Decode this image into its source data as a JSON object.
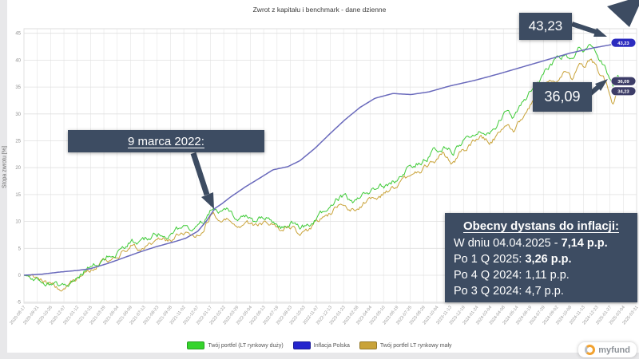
{
  "window": {
    "title": "Zwrot z kapitału i benchmark - dane dzienne"
  },
  "chart_data": {
    "type": "line",
    "title": "Zwrot z kapitału i benchmark - dane dzienne",
    "xlabel": "",
    "ylabel": "Stopa zwrotu [%]",
    "ylim": [
      -5,
      45
    ],
    "y_ticks": [
      -5,
      0,
      5,
      10,
      15,
      20,
      25,
      30,
      35,
      40,
      45
    ],
    "grid": true,
    "legend_position": "bottom",
    "x_tick_labels": [
      "2020-08-17",
      "2020-09-21",
      "2020-10-26",
      "2020-12-07",
      "2021-01-12",
      "2021-02-15",
      "2021-03-29",
      "2021-05-04",
      "2021-06-09",
      "2021-07-13",
      "2021-08-23",
      "2021-09-28",
      "2021-11-02",
      "2021-12-07",
      "2022-01-17",
      "2022-02-22",
      "2022-03-29",
      "2022-05-04",
      "2022-06-13",
      "2022-07-19",
      "2022-08-23",
      "2022-10-03",
      "2022-11-07",
      "2022-12-13",
      "2023-01-23",
      "2023-02-28",
      "2023-04-04",
      "2023-05-10",
      "2023-06-19",
      "2023-07-25",
      "2023-08-29",
      "2023-10-04",
      "2023-11-13",
      "2023-12-19",
      "2024-01-24",
      "2024-03-04",
      "2024-04-08",
      "2024-05-14",
      "2024-06-19",
      "2024-07-29",
      "2024-09-02",
      "2024-10-08",
      "2024-11-13",
      "2024-12-23",
      "2025-01-27",
      "2025-03-04",
      "2025-03-31"
    ],
    "series": [
      {
        "name": "Twój portfel (LT rynkowy duży)",
        "color": "#3ecb37",
        "swatch": "#35d42c",
        "badge": "#3d3d68",
        "end_label": "36,09",
        "end_value": 36.09,
        "noise": 0.55,
        "seed": 11,
        "points": [
          [
            0,
            0
          ],
          [
            0.015,
            -0.3
          ],
          [
            0.03,
            -0.8
          ],
          [
            0.05,
            -1.8
          ],
          [
            0.065,
            -2.3
          ],
          [
            0.08,
            -1.2
          ],
          [
            0.1,
            0.8
          ],
          [
            0.12,
            2.2
          ],
          [
            0.135,
            3.0
          ],
          [
            0.15,
            4.2
          ],
          [
            0.165,
            5.3
          ],
          [
            0.18,
            6.3
          ],
          [
            0.195,
            5.6
          ],
          [
            0.21,
            6.8
          ],
          [
            0.225,
            7.6
          ],
          [
            0.24,
            7.2
          ],
          [
            0.255,
            8.4
          ],
          [
            0.27,
            8.8
          ],
          [
            0.285,
            8.2
          ],
          [
            0.3,
            9.6
          ],
          [
            0.314,
            12.8
          ],
          [
            0.325,
            11.6
          ],
          [
            0.34,
            11.9
          ],
          [
            0.355,
            10.4
          ],
          [
            0.37,
            11.3
          ],
          [
            0.385,
            9.8
          ],
          [
            0.4,
            10.9
          ],
          [
            0.415,
            10.2
          ],
          [
            0.43,
            9.2
          ],
          [
            0.445,
            10.3
          ],
          [
            0.46,
            8.8
          ],
          [
            0.475,
            9.6
          ],
          [
            0.49,
            10.8
          ],
          [
            0.505,
            12.4
          ],
          [
            0.52,
            13.8
          ],
          [
            0.535,
            14.6
          ],
          [
            0.55,
            13.6
          ],
          [
            0.565,
            14.9
          ],
          [
            0.58,
            15.8
          ],
          [
            0.595,
            16.4
          ],
          [
            0.61,
            17.2
          ],
          [
            0.625,
            18.1
          ],
          [
            0.64,
            19.6
          ],
          [
            0.655,
            20.9
          ],
          [
            0.67,
            21.9
          ],
          [
            0.685,
            23.2
          ],
          [
            0.7,
            24.3
          ],
          [
            0.715,
            23.2
          ],
          [
            0.73,
            25.0
          ],
          [
            0.745,
            26.4
          ],
          [
            0.76,
            27.8
          ],
          [
            0.775,
            27.0
          ],
          [
            0.79,
            28.6
          ],
          [
            0.805,
            30.9
          ],
          [
            0.815,
            28.9
          ],
          [
            0.83,
            31.9
          ],
          [
            0.845,
            34.4
          ],
          [
            0.86,
            36.3
          ],
          [
            0.875,
            38.6
          ],
          [
            0.89,
            39.9
          ],
          [
            0.905,
            41.2
          ],
          [
            0.915,
            39.4
          ],
          [
            0.925,
            42.4
          ],
          [
            0.935,
            41.2
          ],
          [
            0.945,
            42.7
          ],
          [
            0.955,
            41.4
          ],
          [
            0.965,
            39.6
          ],
          [
            0.975,
            37.2
          ],
          [
            0.982,
            34.8
          ],
          [
            0.99,
            36.8
          ],
          [
            1,
            36.09
          ]
        ]
      },
      {
        "name": "Inflacja Polska",
        "color": "#6a6abc",
        "swatch": "#2525cd",
        "badge": "#2b2bbf",
        "end_label": "43,23",
        "end_value": 43.23,
        "noise": 0,
        "seed": 1,
        "points": [
          [
            0,
            0
          ],
          [
            0.03,
            0.2
          ],
          [
            0.06,
            0.6
          ],
          [
            0.09,
            0.9
          ],
          [
            0.11,
            1.2
          ],
          [
            0.14,
            2.2
          ],
          [
            0.17,
            3.4
          ],
          [
            0.19,
            4.2
          ],
          [
            0.22,
            5.3
          ],
          [
            0.25,
            6.2
          ],
          [
            0.27,
            6.9
          ],
          [
            0.29,
            8.2
          ],
          [
            0.305,
            10.2
          ],
          [
            0.318,
            12.4
          ],
          [
            0.33,
            13.3
          ],
          [
            0.345,
            14.6
          ],
          [
            0.37,
            16.5
          ],
          [
            0.395,
            18.2
          ],
          [
            0.415,
            19.6
          ],
          [
            0.44,
            20.2
          ],
          [
            0.46,
            21.3
          ],
          [
            0.485,
            23.6
          ],
          [
            0.51,
            26.3
          ],
          [
            0.535,
            28.9
          ],
          [
            0.56,
            31.2
          ],
          [
            0.585,
            32.9
          ],
          [
            0.615,
            33.8
          ],
          [
            0.645,
            33.6
          ],
          [
            0.675,
            34.1
          ],
          [
            0.71,
            35.2
          ],
          [
            0.75,
            36.2
          ],
          [
            0.79,
            37.4
          ],
          [
            0.83,
            38.7
          ],
          [
            0.87,
            40.0
          ],
          [
            0.91,
            41.3
          ],
          [
            0.95,
            42.3
          ],
          [
            0.98,
            42.9
          ],
          [
            1,
            43.23
          ]
        ]
      },
      {
        "name": "Twój portfel LT rynkowy mały",
        "color": "#c9a339",
        "swatch": "#c9a339",
        "badge": "#3d3d68",
        "end_label": "34,23",
        "end_value": 34.23,
        "noise": 0.5,
        "seed": 29,
        "points": [
          [
            0,
            0
          ],
          [
            0.015,
            -0.4
          ],
          [
            0.03,
            -1.0
          ],
          [
            0.05,
            -2.0
          ],
          [
            0.065,
            -2.6
          ],
          [
            0.08,
            -1.5
          ],
          [
            0.1,
            0.4
          ],
          [
            0.12,
            1.7
          ],
          [
            0.135,
            2.4
          ],
          [
            0.15,
            3.6
          ],
          [
            0.165,
            4.6
          ],
          [
            0.18,
            5.6
          ],
          [
            0.195,
            4.9
          ],
          [
            0.21,
            6.0
          ],
          [
            0.225,
            6.8
          ],
          [
            0.24,
            6.4
          ],
          [
            0.255,
            7.5
          ],
          [
            0.27,
            7.9
          ],
          [
            0.285,
            7.3
          ],
          [
            0.3,
            8.7
          ],
          [
            0.314,
            11.7
          ],
          [
            0.325,
            10.6
          ],
          [
            0.34,
            10.9
          ],
          [
            0.355,
            9.3
          ],
          [
            0.37,
            10.2
          ],
          [
            0.385,
            8.7
          ],
          [
            0.4,
            9.8
          ],
          [
            0.415,
            9.1
          ],
          [
            0.43,
            8.1
          ],
          [
            0.445,
            9.2
          ],
          [
            0.46,
            7.7
          ],
          [
            0.475,
            8.5
          ],
          [
            0.49,
            9.7
          ],
          [
            0.505,
            11.2
          ],
          [
            0.52,
            12.6
          ],
          [
            0.535,
            13.4
          ],
          [
            0.55,
            12.4
          ],
          [
            0.565,
            13.6
          ],
          [
            0.58,
            14.5
          ],
          [
            0.595,
            15.0
          ],
          [
            0.61,
            15.8
          ],
          [
            0.625,
            16.6
          ],
          [
            0.64,
            18.0
          ],
          [
            0.655,
            19.2
          ],
          [
            0.67,
            20.1
          ],
          [
            0.685,
            21.3
          ],
          [
            0.7,
            22.3
          ],
          [
            0.715,
            21.2
          ],
          [
            0.73,
            22.9
          ],
          [
            0.745,
            24.2
          ],
          [
            0.76,
            25.5
          ],
          [
            0.775,
            24.7
          ],
          [
            0.79,
            26.2
          ],
          [
            0.805,
            28.4
          ],
          [
            0.815,
            26.5
          ],
          [
            0.83,
            29.3
          ],
          [
            0.845,
            31.7
          ],
          [
            0.86,
            33.5
          ],
          [
            0.875,
            35.7
          ],
          [
            0.89,
            37.0
          ],
          [
            0.905,
            38.3
          ],
          [
            0.915,
            36.6
          ],
          [
            0.925,
            39.5
          ],
          [
            0.935,
            38.3
          ],
          [
            0.945,
            39.8
          ],
          [
            0.955,
            38.5
          ],
          [
            0.965,
            36.8
          ],
          [
            0.975,
            34.6
          ],
          [
            0.982,
            32.4
          ],
          [
            0.99,
            34.9
          ],
          [
            1,
            34.23
          ]
        ]
      }
    ]
  },
  "annotations": {
    "event_label": "9 marca 2022:",
    "callout_top": "43,23",
    "callout_mid": "36,09",
    "info_box": {
      "title": "Obecny dystans do inflacji:",
      "lines": [
        {
          "text": "W dniu 04.04.2025 - ",
          "bold": "7,14 p.p."
        },
        {
          "text": "Po 1 Q 2025: ",
          "bold": "3,26 p.p."
        },
        {
          "text": "Po 4 Q 2024: 1,11 p.p.",
          "bold": ""
        },
        {
          "text": "Po 3 Q 2024: 4,7 p.p.",
          "bold": ""
        }
      ]
    }
  },
  "branding": {
    "logo_text": "myfund"
  },
  "colors": {
    "annotation_navy": "#3d4c62",
    "grid": "#e4e4e4",
    "axis_text": "#999999"
  }
}
